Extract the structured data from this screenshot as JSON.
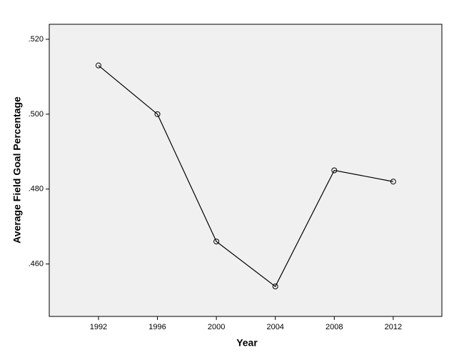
{
  "chart_data": {
    "type": "line",
    "x_label": "Year",
    "y_label": "Average Field Goal Percentage",
    "x": [
      1992,
      1996,
      2000,
      2004,
      2008,
      2012
    ],
    "series": [
      {
        "color": "#000000",
        "values": [
          0.513,
          0.5,
          0.466,
          0.454,
          0.485,
          0.482
        ]
      }
    ],
    "xlim": [
      1988.66,
      2015.3
    ],
    "xticks": [
      1992,
      1996,
      2000,
      2004,
      2008,
      2012
    ],
    "ylim": [
      0.446,
      0.524
    ],
    "yticks": [
      {
        "value": 0.46,
        "label": ".460"
      },
      {
        "value": 0.48,
        "label": ".480"
      },
      {
        "value": 0.5,
        "label": ".500"
      },
      {
        "value": 0.52,
        "label": ".520"
      }
    ],
    "plot_background": "#f0f0f0",
    "marker": "open-circle"
  }
}
